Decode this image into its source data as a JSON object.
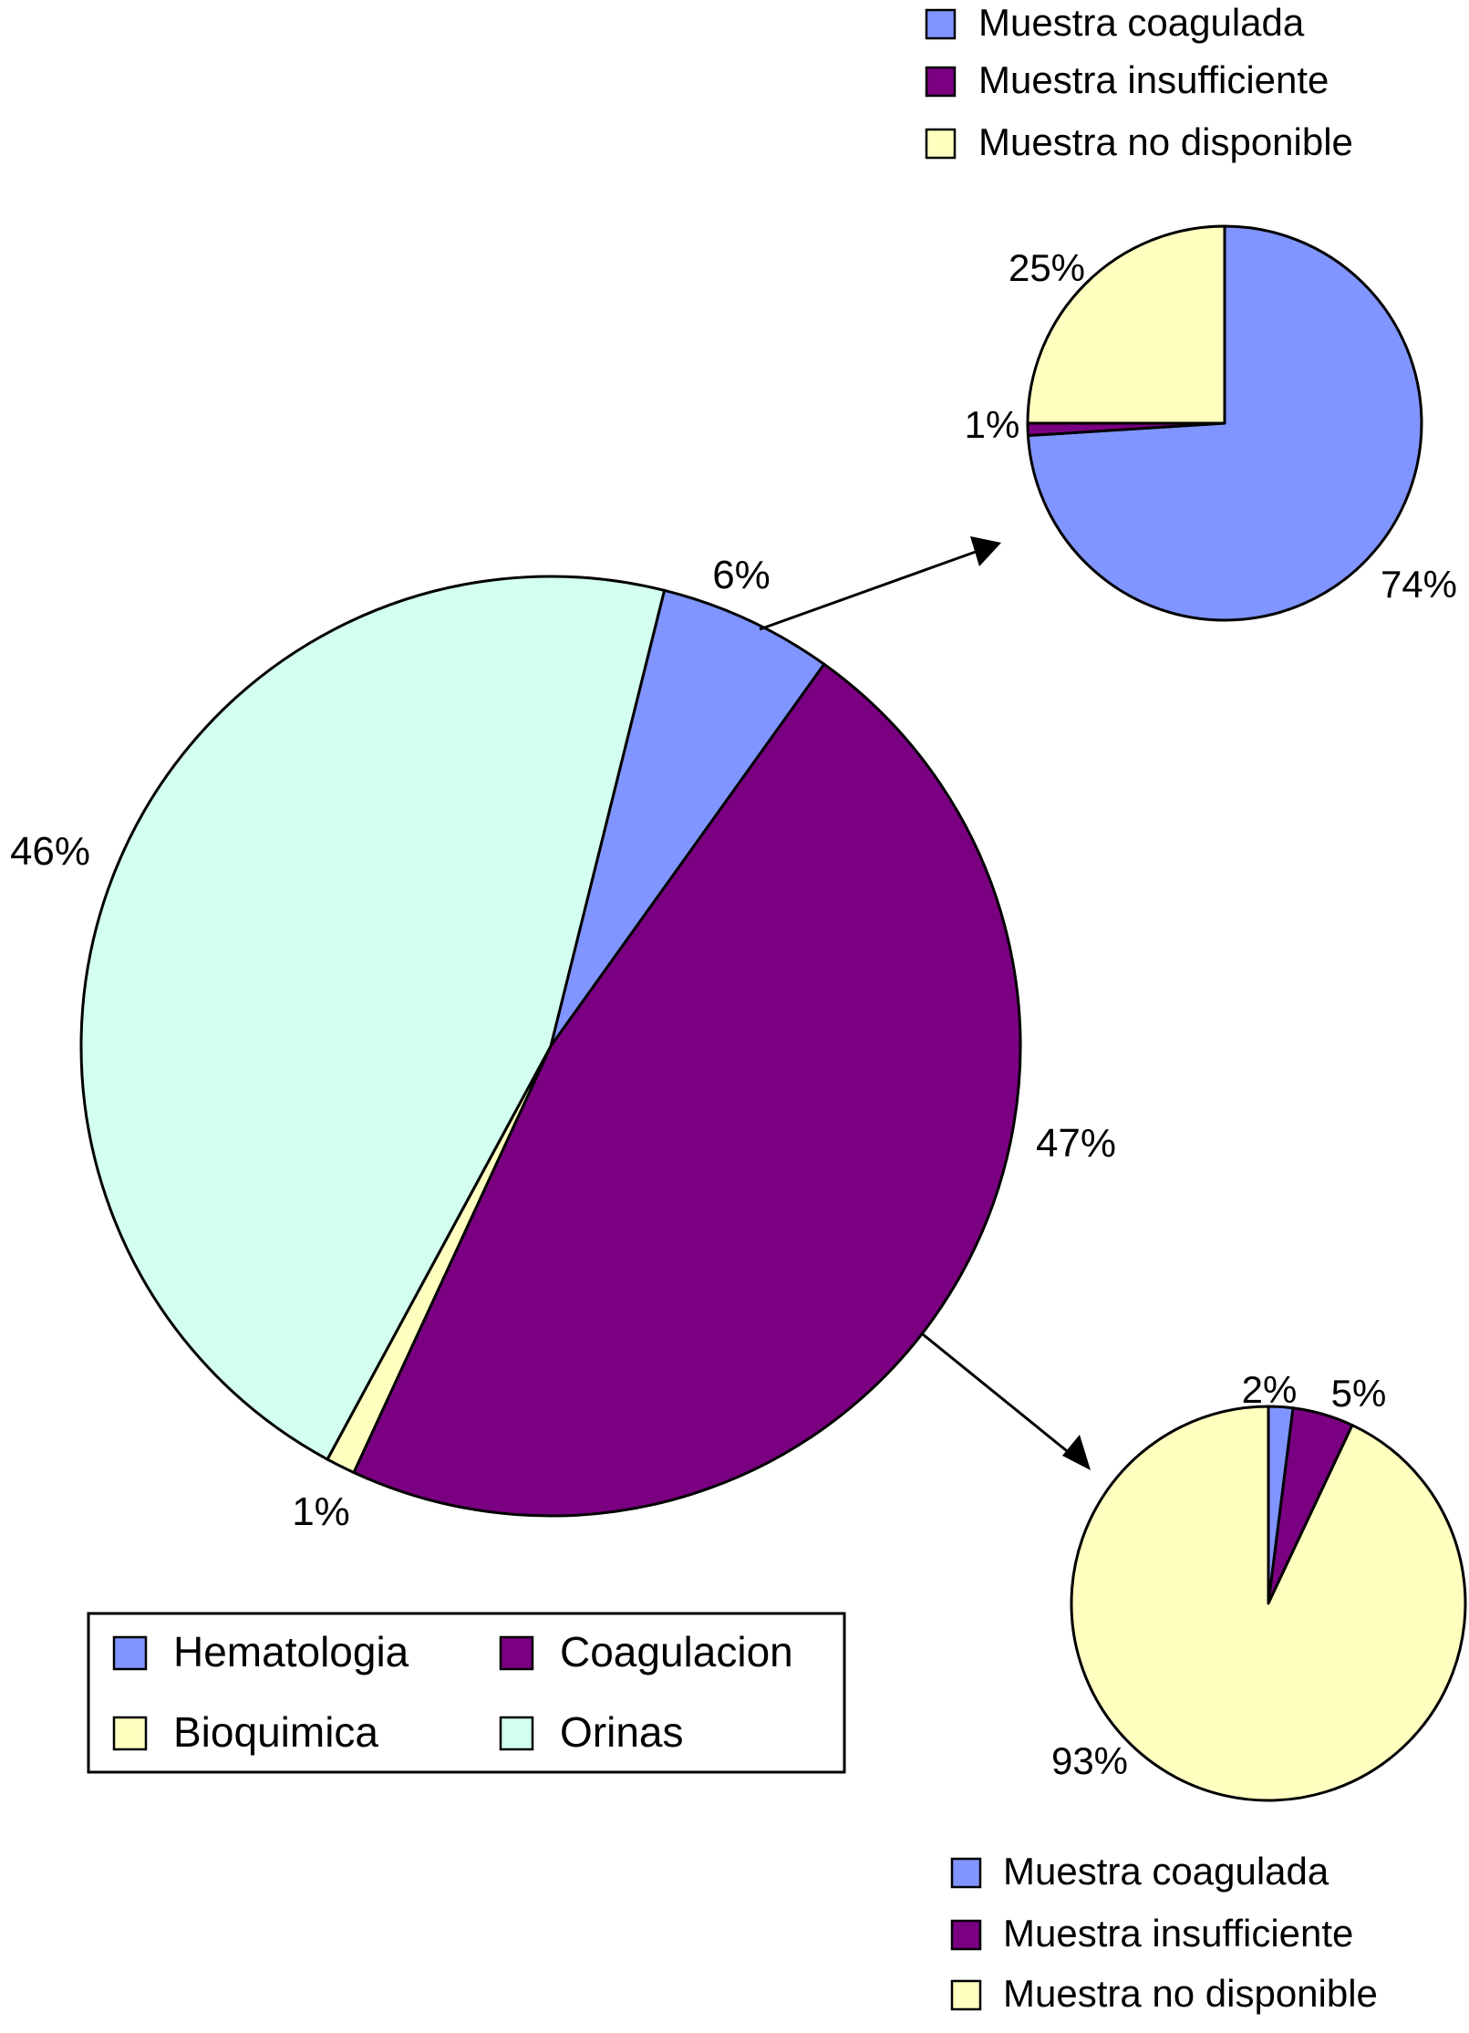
{
  "colors": {
    "hematologia": "#8095FF",
    "coagulacion": "#7A0081",
    "bioquimica": "#FFFFC0",
    "orinas": "#D2FFEE",
    "muestra_coagulada": "#8095FF",
    "muestra_insuficiente": "#7A0081",
    "muestra_no_disponible": "#FFFFC0",
    "stroke": "#000000"
  },
  "chart_data": [
    {
      "type": "pie",
      "id": "main",
      "title": "",
      "slices": [
        {
          "name": "Hematologia",
          "value": 6,
          "label": "6%",
          "color_key": "hematologia"
        },
        {
          "name": "Coagulacion",
          "value": 47,
          "label": "47%",
          "color_key": "coagulacion"
        },
        {
          "name": "Bioquimica",
          "value": 1,
          "label": "1%",
          "color_key": "bioquimica"
        },
        {
          "name": "Orinas",
          "value": 46,
          "label": "46%",
          "color_key": "orinas"
        }
      ],
      "legend": {
        "placement": "bottom-left",
        "entries": [
          "Hematologia",
          "Coagulacion",
          "Bioquimica",
          "Orinas"
        ]
      }
    },
    {
      "type": "pie",
      "id": "hematologia-detail",
      "title": "",
      "slices": [
        {
          "name": "Muestra coagulada",
          "value": 74,
          "label": "74%",
          "color_key": "muestra_coagulada"
        },
        {
          "name": "Muestra insufficiente",
          "value": 1,
          "label": "1%",
          "color_key": "muestra_insuficiente"
        },
        {
          "name": "Muestra no disponible",
          "value": 25,
          "label": "25%",
          "color_key": "muestra_no_disponible"
        }
      ],
      "legend": {
        "placement": "top-right",
        "entries": [
          "Muestra coagulada",
          "Muestra insufficiente",
          "Muestra no disponible"
        ]
      }
    },
    {
      "type": "pie",
      "id": "coagulacion-detail",
      "title": "",
      "slices": [
        {
          "name": "Muestra coagulada",
          "value": 2,
          "label": "2%",
          "color_key": "muestra_coagulada"
        },
        {
          "name": "Muestra insufficiente",
          "value": 5,
          "label": "5%",
          "color_key": "muestra_insuficiente"
        },
        {
          "name": "Muestra no disponible",
          "value": 93,
          "label": "93%",
          "color_key": "muestra_no_disponible"
        }
      ],
      "legend": {
        "placement": "bottom-right",
        "entries": [
          "Muestra coagulada",
          "Muestra insufficiente",
          "Muestra no disponible"
        ]
      }
    }
  ]
}
